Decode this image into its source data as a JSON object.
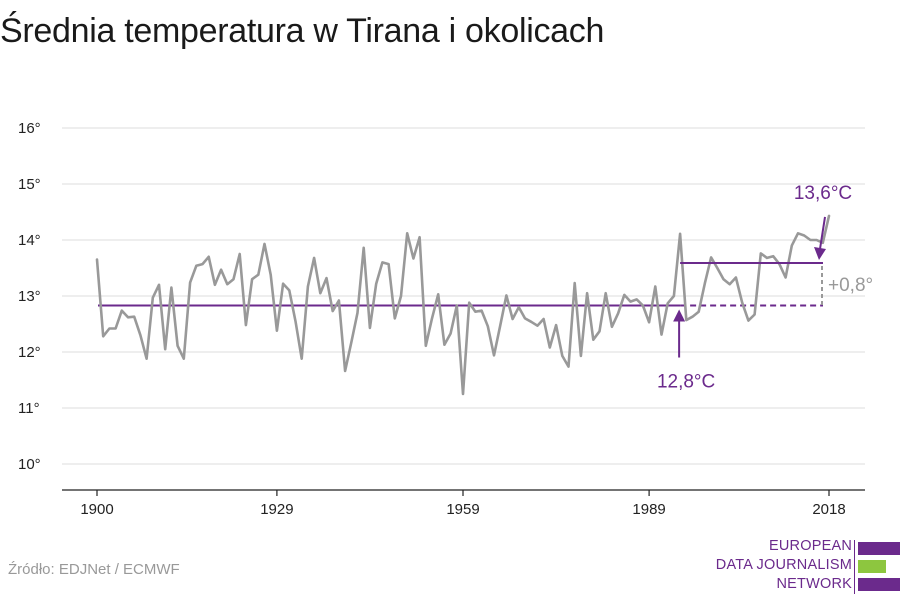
{
  "title": "Średnia temperatura w Tirana i okolicach",
  "source": "Źródło: EDJNet / ECMWF",
  "logo": {
    "lines": [
      "EUROPEAN",
      "DATA JOURNALISM",
      "NETWORK"
    ],
    "colors": {
      "purple": "#6b2a8c",
      "green": "#8dc63f"
    }
  },
  "colors": {
    "series": "#999999",
    "baseline": "#6b2a8c",
    "annotation": "#6b2a8c",
    "diff": "#999999",
    "grid": "#dddddd"
  },
  "chart_data": {
    "type": "line",
    "title": "Średnia temperatura w Tirana i okolicach",
    "xlabel": "",
    "ylabel": "",
    "xlim": [
      1900,
      2018
    ],
    "ylim": [
      10,
      16
    ],
    "y_ticks": [
      10,
      11,
      12,
      13,
      14,
      15,
      16
    ],
    "y_tick_labels": [
      "10°",
      "11°",
      "12°",
      "13°",
      "14°",
      "15°",
      "16°"
    ],
    "x_ticks": [
      1900,
      1929,
      1959,
      1989,
      2018
    ],
    "x_tick_labels": [
      "1900",
      "1929",
      "1959",
      "1989",
      "2018"
    ],
    "grid": true,
    "series": [
      {
        "x": [
          1900,
          1901,
          1902,
          1903,
          1904,
          1905,
          1906,
          1907,
          1908,
          1909,
          1910,
          1911,
          1912,
          1913,
          1914,
          1915,
          1916,
          1917,
          1918,
          1919,
          1920,
          1921,
          1922,
          1923,
          1924,
          1925,
          1926,
          1927,
          1928,
          1929,
          1930,
          1931,
          1932,
          1933,
          1934,
          1935,
          1936,
          1937,
          1938,
          1939,
          1940,
          1941,
          1942,
          1943,
          1944,
          1945,
          1946,
          1947,
          1948,
          1949,
          1950,
          1951,
          1952,
          1953,
          1954,
          1955,
          1956,
          1957,
          1958,
          1959,
          1960,
          1961,
          1962,
          1963,
          1964,
          1965,
          1966,
          1967,
          1968,
          1969,
          1970,
          1971,
          1972,
          1973,
          1974,
          1975,
          1976,
          1977,
          1978,
          1979,
          1980,
          1981,
          1982,
          1983,
          1984,
          1985,
          1986,
          1987,
          1988,
          1989,
          1990,
          1991,
          1992,
          1993,
          1994,
          1995,
          1996,
          1997,
          1998,
          1999,
          2000,
          2001,
          2002,
          2003,
          2004,
          2005,
          2006,
          2007,
          2008,
          2009,
          2010,
          2011,
          2012,
          2013,
          2014,
          2015,
          2016,
          2017,
          2018
        ],
        "values": [
          13.65,
          12.28,
          12.42,
          12.42,
          12.74,
          12.62,
          12.63,
          12.3,
          11.88,
          12.97,
          13.2,
          12.05,
          13.15,
          12.11,
          11.88,
          13.24,
          13.54,
          13.57,
          13.7,
          13.2,
          13.47,
          13.21,
          13.3,
          13.75,
          12.48,
          13.3,
          13.38,
          13.93,
          13.38,
          12.38,
          13.22,
          13.1,
          12.55,
          11.88,
          13.17,
          13.68,
          13.05,
          13.32,
          12.73,
          12.92,
          11.66,
          12.17,
          12.7,
          13.86,
          12.43,
          13.22,
          13.6,
          13.57,
          12.6,
          13.0,
          14.12,
          13.67,
          14.05,
          12.11,
          12.6,
          13.03,
          12.13,
          12.33,
          12.83,
          11.25,
          12.88,
          12.72,
          12.74,
          12.46,
          11.94,
          12.47,
          13.01,
          12.59,
          12.8,
          12.6,
          12.54,
          12.47,
          12.59,
          12.08,
          12.48,
          11.93,
          11.74,
          13.23,
          11.93,
          13.05,
          12.22,
          12.37,
          13.05,
          12.45,
          12.69,
          13.02,
          12.9,
          12.94,
          12.83,
          12.53,
          13.17,
          12.31,
          12.87,
          13.0,
          14.11,
          12.57,
          12.63,
          12.72,
          13.23,
          13.69,
          13.5,
          13.3,
          13.21,
          13.33,
          12.88,
          12.56,
          12.67,
          13.76,
          13.68,
          13.71,
          13.57,
          13.33,
          13.9,
          14.12,
          14.08,
          14.0,
          14.0,
          13.95,
          14.43
        ]
      }
    ],
    "annotations": {
      "baseline_value": 12.83,
      "baseline_label": "12,8°C",
      "recent_value": 13.59,
      "recent_label": "13,6°C",
      "diff_label": "+0,8°",
      "recent_start_year": 1994
    }
  }
}
